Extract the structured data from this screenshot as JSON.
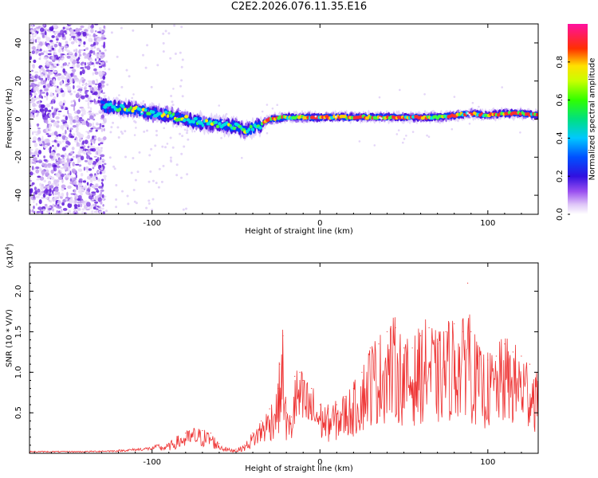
{
  "title": "C2E2.2026.076.11.35.E16",
  "chart_data": [
    {
      "type": "heatmap",
      "title": "C2E2.2026.076.11.35.E16",
      "xlabel": "Height of straight line (km)",
      "ylabel": "Frequency (Hz)",
      "xlim": [
        -173,
        130
      ],
      "ylim": [
        -50,
        50
      ],
      "xticks": [
        -100,
        0,
        100
      ],
      "yticks": [
        -40,
        -20,
        0,
        20,
        40
      ],
      "colorbar": {
        "label": "Normalized spectral amplitude",
        "range": [
          0,
          1
        ],
        "ticks": [
          "0.0",
          "0.2",
          "0.4",
          "0.6",
          "0.8"
        ]
      },
      "ridge": {
        "x": [
          -130,
          -120,
          -110,
          -100,
          -90,
          -80,
          -70,
          -60,
          -50,
          -45,
          -40,
          -35,
          -30,
          -20,
          -10,
          0,
          10,
          20,
          30,
          40,
          50,
          60,
          70,
          80,
          90,
          100,
          110,
          120,
          130
        ],
        "freq": [
          7,
          6,
          5,
          3,
          2,
          0,
          -2,
          -3,
          -4,
          -6,
          -5,
          -3,
          0,
          1,
          1,
          1,
          1,
          1,
          1,
          1,
          1,
          1,
          1,
          2,
          3,
          2,
          3,
          3,
          2
        ]
      }
    },
    {
      "type": "line",
      "xlabel": "Height of straight line (km)",
      "ylabel": "SNR (10 * V/V)",
      "yscale_label": "(x10",
      "yscale_exp": "4",
      "xlim": [
        -173,
        130
      ],
      "ylim": [
        0,
        2.35
      ],
      "xticks": [
        -100,
        0,
        100
      ],
      "yticks": [
        "0.5",
        "1.0",
        "1.5",
        "2.0"
      ],
      "color": "#ee3333",
      "series": [
        {
          "name": "SNR",
          "x": [
            -173,
            -140,
            -120,
            -100,
            -90,
            -85,
            -80,
            -75,
            -70,
            -65,
            -60,
            -55,
            -50,
            -45,
            -40,
            -35,
            -30,
            -25,
            -24,
            -22,
            -20,
            -17,
            -15,
            -12,
            -10,
            -5,
            0,
            5,
            10,
            15,
            20,
            25,
            30,
            35,
            40,
            45,
            50,
            55,
            60,
            65,
            70,
            75,
            80,
            85,
            88,
            90,
            95,
            100,
            105,
            110,
            115,
            120,
            125,
            130
          ],
          "y": [
            0.02,
            0.02,
            0.03,
            0.06,
            0.12,
            0.2,
            0.25,
            0.3,
            0.28,
            0.25,
            0.12,
            0.06,
            0.05,
            0.1,
            0.25,
            0.4,
            0.55,
            0.8,
            1.1,
            1.45,
            0.5,
            0.45,
            0.95,
            1.0,
            0.9,
            0.8,
            0.6,
            0.55,
            0.6,
            0.7,
            0.8,
            1.0,
            1.3,
            1.35,
            1.5,
            1.55,
            1.3,
            1.3,
            1.45,
            1.55,
            1.35,
            1.5,
            1.6,
            1.5,
            2.1,
            1.5,
            1.2,
            1.15,
            1.2,
            1.35,
            1.25,
            1.2,
            1.1,
            1.0
          ]
        }
      ]
    }
  ]
}
